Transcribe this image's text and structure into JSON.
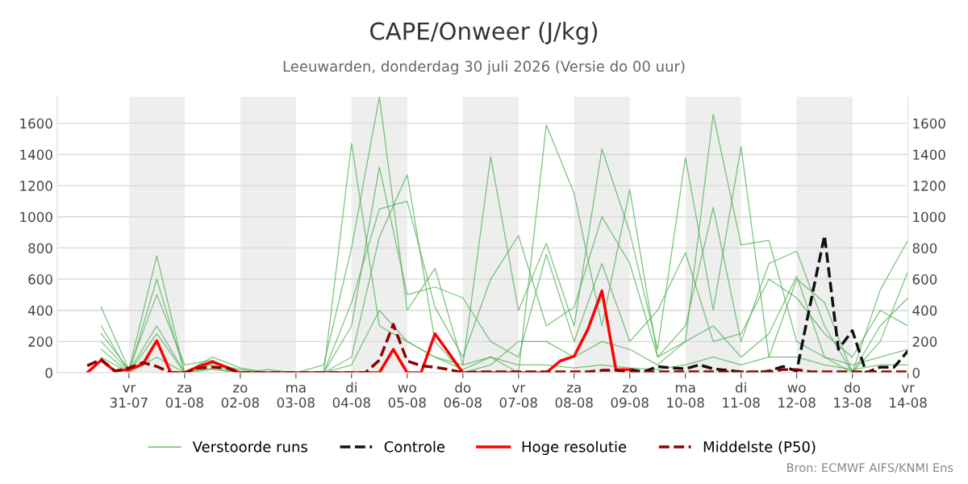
{
  "chart_data": {
    "type": "line",
    "title": "CAPE/Onweer (J/kg)",
    "subtitle": "Leeuwarden, donderdag 30 juli 2026 (Versie do 00 uur)",
    "annotations": [
      "Bron: ECMWF AIFS/KNMI Ens"
    ],
    "x": [
      "2026-07-30T06:00",
      "2026-07-30T12:00",
      "2026-07-30T18:00",
      "2026-07-31T00:00",
      "2026-07-31T06:00",
      "2026-07-31T12:00",
      "2026-07-31T18:00",
      "2026-08-01T00:00",
      "2026-08-01T06:00",
      "2026-08-01T12:00",
      "2026-08-01T18:00",
      "2026-08-02T00:00",
      "2026-08-02T06:00",
      "2026-08-02T12:00",
      "2026-08-02T18:00",
      "2026-08-03T00:00",
      "2026-08-03T06:00",
      "2026-08-03T12:00",
      "2026-08-03T18:00",
      "2026-08-04T00:00",
      "2026-08-04T06:00",
      "2026-08-04T12:00",
      "2026-08-04T18:00",
      "2026-08-05T00:00",
      "2026-08-05T06:00",
      "2026-08-05T12:00",
      "2026-08-05T18:00",
      "2026-08-06T00:00",
      "2026-08-06T06:00",
      "2026-08-06T12:00",
      "2026-08-06T18:00",
      "2026-08-07T00:00",
      "2026-08-07T06:00",
      "2026-08-07T12:00",
      "2026-08-07T18:00",
      "2026-08-08T00:00",
      "2026-08-08T06:00",
      "2026-08-08T12:00",
      "2026-08-08T18:00",
      "2026-08-09T00:00",
      "2026-08-09T06:00",
      "2026-08-09T12:00",
      "2026-08-09T18:00",
      "2026-08-10T00:00",
      "2026-08-10T06:00",
      "2026-08-10T12:00",
      "2026-08-10T18:00",
      "2026-08-11T00:00",
      "2026-08-11T06:00",
      "2026-08-11T12:00",
      "2026-08-11T18:00",
      "2026-08-12T00:00",
      "2026-08-12T06:00",
      "2026-08-12T12:00",
      "2026-08-12T18:00",
      "2026-08-13T00:00",
      "2026-08-13T06:00",
      "2026-08-13T12:00",
      "2026-08-13T18:00",
      "2026-08-14T00:00"
    ],
    "series": [
      {
        "name": "Verstoorde runs",
        "color": "#4caf50",
        "line_style": "solid",
        "x": [
          "2026-07-30T12:00",
          "2026-07-31T00:00",
          "2026-07-31T12:00",
          "2026-08-01T00:00",
          "2026-08-01T12:00",
          "2026-08-02T00:00",
          "2026-08-02T12:00",
          "2026-08-03T00:00",
          "2026-08-03T12:00",
          "2026-08-04T00:00",
          "2026-08-04T12:00",
          "2026-08-05T00:00",
          "2026-08-05T12:00",
          "2026-08-06T00:00",
          "2026-08-06T12:00",
          "2026-08-07T00:00",
          "2026-08-07T12:00",
          "2026-08-08T00:00",
          "2026-08-08T12:00",
          "2026-08-09T00:00",
          "2026-08-09T12:00",
          "2026-08-10T00:00",
          "2026-08-10T12:00",
          "2026-08-11T00:00",
          "2026-08-11T12:00",
          "2026-08-12T00:00",
          "2026-08-12T12:00",
          "2026-08-13T00:00",
          "2026-08-13T12:00",
          "2026-08-14T00:00"
        ],
        "values": [
          420,
          20,
          750,
          0,
          60,
          20,
          0,
          0,
          0,
          1470,
          300,
          200,
          100,
          20,
          100,
          0,
          1590,
          1150,
          300,
          1175,
          100,
          200,
          1660,
          820,
          850,
          200,
          100,
          0,
          200,
          650
        ]
      },
      {
        "color": "#4caf50",
        "line_style": "solid",
        "x": [
          "2026-07-30T12:00",
          "2026-07-31T00:00",
          "2026-07-31T12:00",
          "2026-08-01T00:00",
          "2026-08-01T12:00",
          "2026-08-02T00:00",
          "2026-08-02T12:00",
          "2026-08-03T00:00",
          "2026-08-03T12:00",
          "2026-08-04T00:00",
          "2026-08-04T12:00",
          "2026-08-05T00:00",
          "2026-08-05T12:00",
          "2026-08-06T00:00",
          "2026-08-06T12:00",
          "2026-08-07T00:00",
          "2026-08-07T12:00",
          "2026-08-08T00:00",
          "2026-08-08T12:00",
          "2026-08-09T00:00",
          "2026-08-09T12:00",
          "2026-08-10T00:00",
          "2026-08-10T12:00",
          "2026-08-11T00:00",
          "2026-08-11T12:00",
          "2026-08-12T00:00",
          "2026-08-12T12:00",
          "2026-08-13T00:00",
          "2026-08-13T12:00",
          "2026-08-14T00:00"
        ],
        "values": [
          300,
          0,
          600,
          0,
          100,
          30,
          0,
          0,
          50,
          800,
          1770,
          400,
          670,
          50,
          1385,
          400,
          830,
          300,
          1435,
          900,
          150,
          1380,
          400,
          1450,
          100,
          600,
          450,
          0,
          300,
          480
        ]
      },
      {
        "color": "#4caf50",
        "line_style": "solid",
        "x": [
          "2026-07-30T12:00",
          "2026-07-31T00:00",
          "2026-07-31T12:00",
          "2026-08-01T00:00",
          "2026-08-01T12:00",
          "2026-08-02T00:00",
          "2026-08-02T12:00",
          "2026-08-03T00:00",
          "2026-08-03T12:00",
          "2026-08-04T00:00",
          "2026-08-04T12:00",
          "2026-08-05T00:00",
          "2026-08-05T12:00",
          "2026-08-06T00:00",
          "2026-08-06T12:00",
          "2026-08-07T00:00",
          "2026-08-07T12:00",
          "2026-08-08T00:00",
          "2026-08-08T12:00",
          "2026-08-09T00:00",
          "2026-08-09T12:00",
          "2026-08-10T00:00",
          "2026-08-10T12:00",
          "2026-08-11T00:00",
          "2026-08-11T12:00",
          "2026-08-12T00:00",
          "2026-08-12T12:00",
          "2026-08-13T00:00",
          "2026-08-13T12:00",
          "2026-08-14T00:00"
        ],
        "values": [
          250,
          20,
          500,
          50,
          80,
          0,
          20,
          0,
          0,
          450,
          1050,
          1100,
          420,
          100,
          600,
          880,
          300,
          420,
          1000,
          700,
          100,
          300,
          1060,
          200,
          700,
          780,
          300,
          0,
          530,
          850
        ]
      },
      {
        "color": "#4caf50",
        "line_style": "solid",
        "x": [
          "2026-07-30T12:00",
          "2026-07-31T00:00",
          "2026-07-31T12:00",
          "2026-08-01T00:00",
          "2026-08-01T12:00",
          "2026-08-02T00:00",
          "2026-08-02T12:00",
          "2026-08-03T00:00",
          "2026-08-03T12:00",
          "2026-08-04T00:00",
          "2026-08-04T12:00",
          "2026-08-05T00:00",
          "2026-08-05T12:00",
          "2026-08-06T00:00",
          "2026-08-06T12:00",
          "2026-08-07T00:00",
          "2026-08-07T12:00",
          "2026-08-08T00:00",
          "2026-08-08T12:00",
          "2026-08-09T00:00",
          "2026-08-09T12:00",
          "2026-08-10T00:00",
          "2026-08-10T12:00",
          "2026-08-11T00:00",
          "2026-08-11T12:00",
          "2026-08-12T00:00",
          "2026-08-12T12:00",
          "2026-08-13T00:00",
          "2026-08-13T12:00",
          "2026-08-14T00:00"
        ],
        "values": [
          200,
          10,
          300,
          0,
          50,
          0,
          0,
          0,
          0,
          300,
          1320,
          500,
          550,
          480,
          200,
          100,
          760,
          200,
          700,
          200,
          400,
          770,
          200,
          250,
          600,
          480,
          250,
          100,
          400,
          300
        ]
      },
      {
        "color": "#4caf50",
        "line_style": "solid",
        "x": [
          "2026-07-30T12:00",
          "2026-07-31T00:00",
          "2026-07-31T12:00",
          "2026-08-01T00:00",
          "2026-08-01T12:00",
          "2026-08-02T00:00",
          "2026-08-02T12:00",
          "2026-08-03T00:00",
          "2026-08-03T12:00",
          "2026-08-04T00:00",
          "2026-08-04T12:00",
          "2026-08-05T00:00",
          "2026-08-05T12:00",
          "2026-08-06T00:00",
          "2026-08-06T12:00",
          "2026-08-07T00:00",
          "2026-08-07T12:00",
          "2026-08-08T00:00",
          "2026-08-08T12:00",
          "2026-08-09T00:00",
          "2026-08-09T12:00",
          "2026-08-10T00:00",
          "2026-08-10T12:00",
          "2026-08-11T00:00",
          "2026-08-11T12:00",
          "2026-08-12T00:00",
          "2026-08-12T12:00",
          "2026-08-13T00:00",
          "2026-08-13T12:00",
          "2026-08-14T00:00"
        ],
        "values": [
          150,
          0,
          250,
          0,
          30,
          0,
          0,
          0,
          0,
          100,
          870,
          1270,
          200,
          0,
          50,
          200,
          200,
          100,
          200,
          150,
          50,
          200,
          300,
          100,
          250,
          620,
          100,
          50,
          100,
          150
        ]
      },
      {
        "color": "#4caf50",
        "line_style": "solid",
        "x": [
          "2026-07-30T12:00",
          "2026-07-31T00:00",
          "2026-07-31T12:00",
          "2026-08-01T00:00",
          "2026-08-01T12:00",
          "2026-08-02T00:00",
          "2026-08-02T12:00",
          "2026-08-03T00:00",
          "2026-08-03T12:00",
          "2026-08-04T00:00",
          "2026-08-04T12:00",
          "2026-08-05T00:00",
          "2026-08-05T12:00",
          "2026-08-06T00:00",
          "2026-08-06T12:00",
          "2026-08-07T00:00",
          "2026-08-07T12:00",
          "2026-08-08T00:00",
          "2026-08-08T12:00",
          "2026-08-09T00:00",
          "2026-08-09T12:00",
          "2026-08-10T00:00",
          "2026-08-10T12:00",
          "2026-08-11T00:00",
          "2026-08-11T12:00",
          "2026-08-12T00:00",
          "2026-08-12T12:00",
          "2026-08-13T00:00",
          "2026-08-13T12:00",
          "2026-08-14T00:00"
        ],
        "values": [
          100,
          0,
          100,
          0,
          20,
          0,
          0,
          0,
          0,
          50,
          400,
          200,
          100,
          50,
          100,
          50,
          50,
          30,
          50,
          30,
          20,
          50,
          100,
          50,
          100,
          100,
          50,
          20,
          50,
          50
        ]
      },
      {
        "name": "Controle",
        "color": "#111111",
        "line_style": "dashed",
        "values": [
          null,
          null,
          null,
          null,
          null,
          null,
          null,
          null,
          null,
          null,
          null,
          null,
          null,
          null,
          null,
          null,
          null,
          null,
          null,
          null,
          null,
          null,
          null,
          null,
          null,
          null,
          null,
          null,
          null,
          null,
          null,
          null,
          null,
          null,
          null,
          null,
          null,
          null,
          null,
          20,
          5,
          40,
          30,
          25,
          50,
          25,
          15,
          5,
          0,
          10,
          40,
          10,
          450,
          880,
          150,
          270,
          0,
          35,
          35,
          140
        ]
      },
      {
        "name": "Hoge resolutie",
        "color": "#ff0000",
        "line_style": "solid",
        "values": [
          0,
          80,
          10,
          20,
          55,
          205,
          0,
          0,
          40,
          70,
          35,
          0,
          0,
          0,
          0,
          0,
          0,
          0,
          0,
          0,
          0,
          0,
          150,
          0,
          0,
          250,
          125,
          0,
          0,
          0,
          0,
          0,
          0,
          0,
          75,
          105,
          280,
          525,
          20,
          20,
          null,
          null,
          null,
          null,
          null,
          null,
          null,
          null,
          null,
          null,
          null,
          null,
          null,
          null,
          null,
          null,
          null,
          null,
          null,
          null
        ]
      },
      {
        "name": "Middelste (P50)",
        "color": "#8b0000",
        "line_style": "dashed",
        "values": [
          45,
          85,
          10,
          30,
          65,
          40,
          0,
          0,
          30,
          35,
          30,
          0,
          0,
          0,
          0,
          0,
          0,
          0,
          0,
          0,
          0,
          80,
          310,
          75,
          45,
          35,
          20,
          0,
          5,
          5,
          5,
          5,
          5,
          5,
          5,
          5,
          5,
          15,
          15,
          5,
          5,
          5,
          5,
          5,
          5,
          5,
          5,
          5,
          5,
          5,
          20,
          20,
          5,
          5,
          5,
          5,
          5,
          5,
          5,
          5
        ]
      }
    ],
    "xlim": [
      "2026-07-29T17:00",
      "2026-08-14T00:00"
    ],
    "xticks": [
      {
        "value": "2026-07-31",
        "label": "vr\n31-07"
      },
      {
        "value": "2026-08-01",
        "label": "za\n01-08"
      },
      {
        "value": "2026-08-02",
        "label": "zo\n02-08"
      },
      {
        "value": "2026-08-03",
        "label": "ma\n03-08"
      },
      {
        "value": "2026-08-04",
        "label": "di\n04-08"
      },
      {
        "value": "2026-08-05",
        "label": "wo\n05-08"
      },
      {
        "value": "2026-08-06",
        "label": "do\n06-08"
      },
      {
        "value": "2026-08-07",
        "label": "vr\n07-08"
      },
      {
        "value": "2026-08-08",
        "label": "za\n08-08"
      },
      {
        "value": "2026-08-09",
        "label": "zo\n09-08"
      },
      {
        "value": "2026-08-10",
        "label": "ma\n10-08"
      },
      {
        "value": "2026-08-11",
        "label": "di\n11-08"
      },
      {
        "value": "2026-08-12",
        "label": "wo\n12-08"
      },
      {
        "value": "2026-08-13",
        "label": "do\n13-08"
      },
      {
        "value": "2026-08-14",
        "label": "vr\n14-08"
      }
    ],
    "ylim": [
      0,
      1770
    ],
    "yticks": [
      0,
      200,
      400,
      600,
      800,
      1000,
      1200,
      1400,
      1600
    ],
    "y2lim": [
      0,
      1770
    ],
    "y2ticks": [
      0,
      200,
      400,
      600,
      800,
      1000,
      1200,
      1400,
      1600
    ],
    "bands": [
      {
        "axis": "x",
        "from": "2026-07-31",
        "to": "2026-08-01",
        "color": "#eeeeee"
      },
      {
        "axis": "x",
        "from": "2026-08-02",
        "to": "2026-08-03",
        "color": "#eeeeee"
      },
      {
        "axis": "x",
        "from": "2026-08-04",
        "to": "2026-08-05",
        "color": "#eeeeee"
      },
      {
        "axis": "x",
        "from": "2026-08-06",
        "to": "2026-08-07",
        "color": "#eeeeee"
      },
      {
        "axis": "x",
        "from": "2026-08-08",
        "to": "2026-08-09",
        "color": "#eeeeee"
      },
      {
        "axis": "x",
        "from": "2026-08-10",
        "to": "2026-08-11",
        "color": "#eeeeee"
      },
      {
        "axis": "x",
        "from": "2026-08-12",
        "to": "2026-08-13",
        "color": "#eeeeee"
      }
    ],
    "grid": "y",
    "legend": "bottom",
    "marker": "none"
  }
}
